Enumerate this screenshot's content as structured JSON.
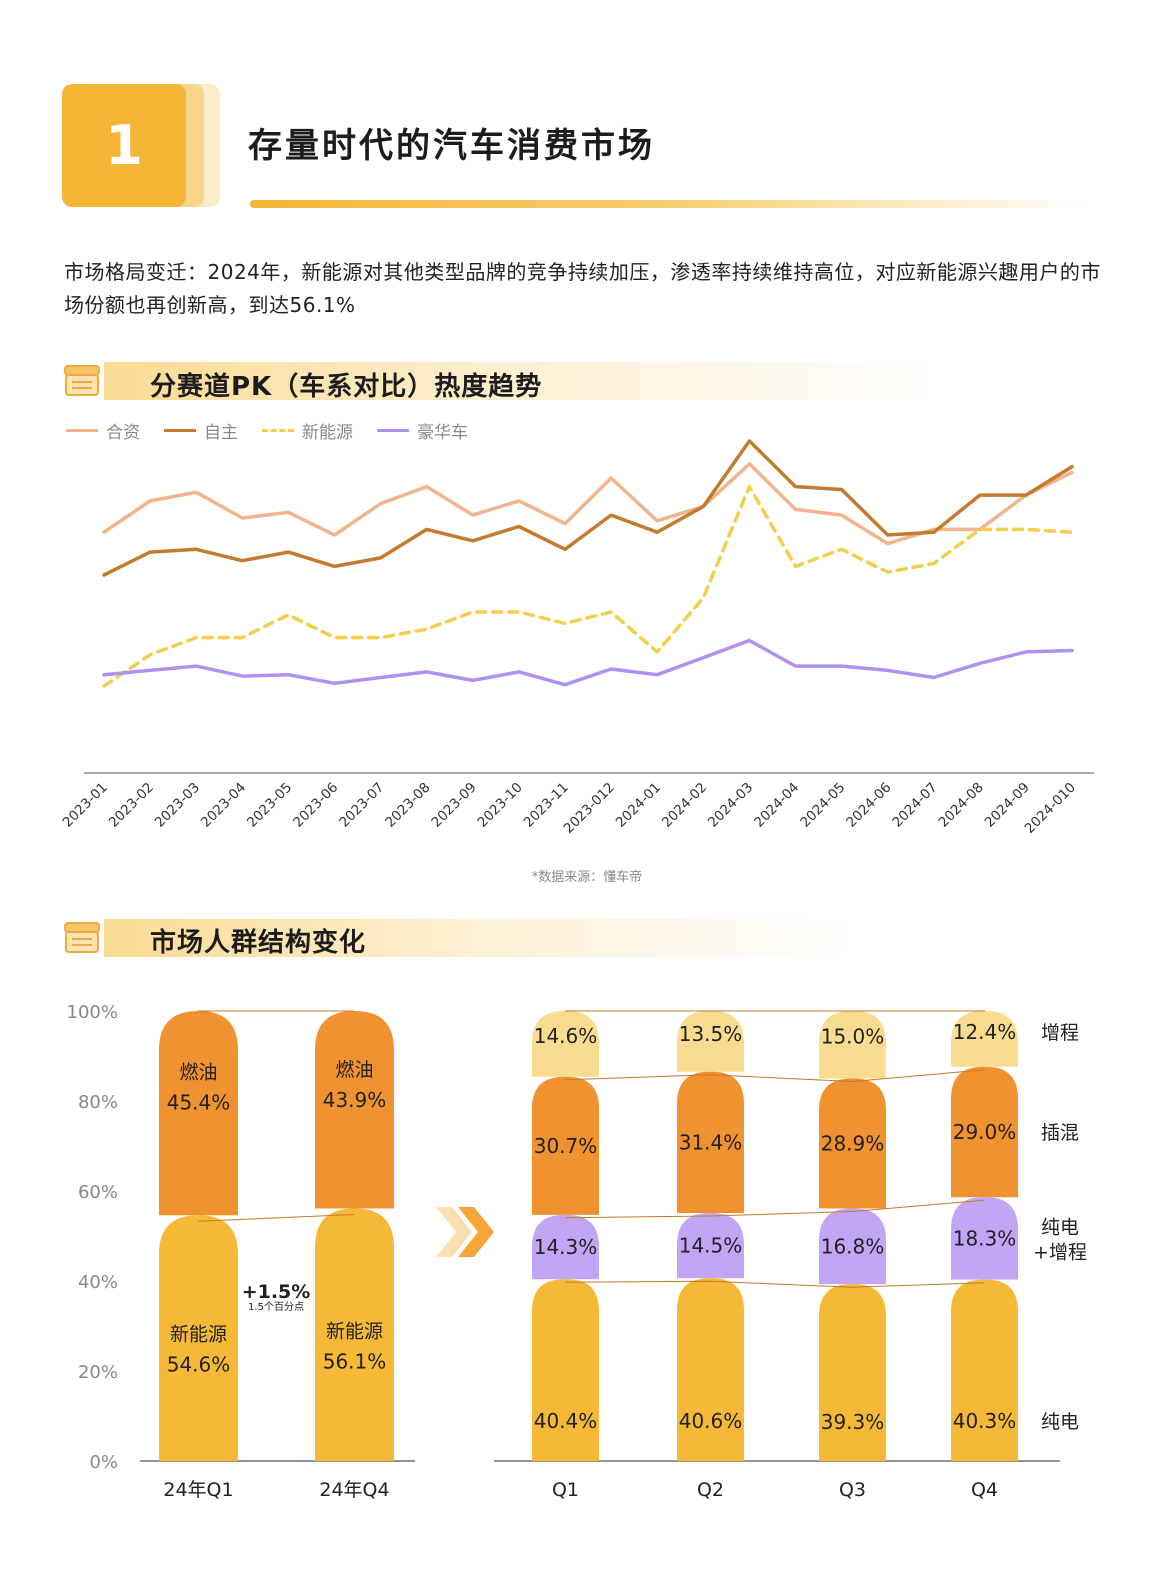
{
  "header": {
    "number": "1",
    "title": "存量时代的汽车消费市场"
  },
  "intro": "市场格局变迁：2024年，新能源对其他类型品牌的竞争持续加压，渗透率持续维持高位，对应新能源兴趣用户的市场份额也再创新高，到达56.1%",
  "section1": {
    "title": "分赛道PK（车系对比）热度趋势",
    "icon": "store-icon"
  },
  "section2": {
    "title": "市场人群结构变化",
    "icon": "store-icon"
  },
  "source": "*数据来源：懂车帝",
  "chart_data": [
    {
      "type": "line",
      "title": "",
      "xlabel": "",
      "ylabel": "",
      "y_axis_shown": false,
      "legend_position": "top-left",
      "categories": [
        "2023-01",
        "2023-02",
        "2023-03",
        "2023-04",
        "2023-05",
        "2023-06",
        "2023-07",
        "2023-08",
        "2023-09",
        "2023-10",
        "2023-11",
        "2023-012",
        "2024-01",
        "2024-02",
        "2024-03",
        "2024-04",
        "2024-05",
        "2024-06",
        "2024-07",
        "2024-08",
        "2024-09",
        "2024-010"
      ],
      "ylim": [
        0,
        100
      ],
      "series": [
        {
          "name": "合资",
          "color": "#f2b48c",
          "dashed": false,
          "values": [
            68,
            79,
            82,
            73,
            75,
            67,
            78,
            84,
            74,
            79,
            71,
            87,
            72,
            77,
            92,
            76,
            74,
            64,
            69,
            69,
            81,
            89
          ]
        },
        {
          "name": "自主",
          "color": "#c37b2e",
          "dashed": false,
          "values": [
            53,
            61,
            62,
            58,
            61,
            56,
            59,
            69,
            65,
            70,
            62,
            74,
            68,
            77,
            100,
            84,
            83,
            67,
            68,
            81,
            81,
            91
          ]
        },
        {
          "name": "新能源",
          "color": "#f2cf4a",
          "dashed": true,
          "values": [
            14,
            25,
            31,
            31,
            39,
            31,
            31,
            34,
            40,
            40,
            36,
            40,
            26,
            45,
            84,
            56,
            62,
            54,
            57,
            69,
            69,
            68
          ]
        },
        {
          "name": "豪华车",
          "color": "#b090f2",
          "dashed": false,
          "values": [
            18,
            19.5,
            21,
            17.5,
            18,
            15,
            17,
            19,
            16,
            19,
            14.5,
            20,
            18,
            24,
            30,
            21,
            21,
            19.5,
            17,
            22,
            26,
            26.5
          ]
        }
      ]
    },
    {
      "type": "bar",
      "stacked": true,
      "ylim": [
        0,
        100
      ],
      "yticks": [
        "0%",
        "20%",
        "40%",
        "60%",
        "80%",
        "100%"
      ],
      "categories": [
        "24年Q1",
        "24年Q4"
      ],
      "series": [
        {
          "name": "新能源",
          "color": "#f5b937",
          "values": [
            54.6,
            56.1
          ],
          "labels": [
            "54.6%",
            "56.1%"
          ]
        },
        {
          "name": "燃油",
          "color": "#f0922f",
          "values": [
            45.4,
            43.9
          ],
          "labels": [
            "45.4%",
            "43.9%"
          ]
        }
      ],
      "annotation": {
        "text": "+1.5%",
        "subtext": "1.5个百分点"
      }
    },
    {
      "type": "bar",
      "stacked": true,
      "ylim": [
        0,
        100
      ],
      "categories": [
        "Q1",
        "Q2",
        "Q3",
        "Q4"
      ],
      "series": [
        {
          "name": "纯电",
          "color": "#f5b937",
          "values": [
            40.4,
            40.6,
            39.3,
            40.3
          ],
          "labels": [
            "40.4%",
            "40.6%",
            "39.3%",
            "40.3%"
          ]
        },
        {
          "name": "纯电\n+增程",
          "color": "#c3a5f5",
          "values": [
            14.3,
            14.5,
            16.8,
            18.3
          ],
          "labels": [
            "14.3%",
            "14.5%",
            "16.8%",
            "18.3%"
          ]
        },
        {
          "name": "插混",
          "color": "#f0922f",
          "values": [
            30.7,
            31.4,
            28.9,
            29.0
          ],
          "labels": [
            "30.7%",
            "31.4%",
            "28.9%",
            "29.0%"
          ]
        },
        {
          "name": "增程",
          "color": "#f9dc8f",
          "values": [
            14.6,
            13.5,
            15.0,
            12.4
          ],
          "labels": [
            "14.6%",
            "13.5%",
            "15.0%",
            "12.4%"
          ]
        }
      ]
    }
  ]
}
